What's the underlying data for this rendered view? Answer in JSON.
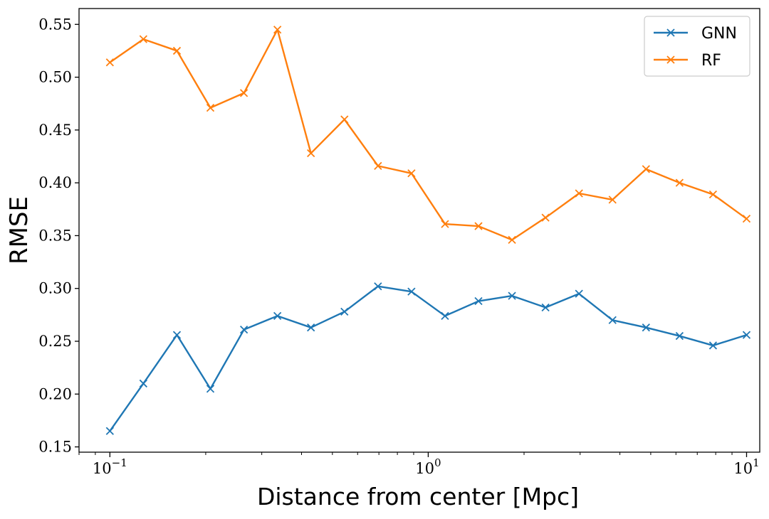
{
  "chart_data": {
    "type": "line",
    "xlabel": "Distance from center [Mpc]",
    "ylabel": "RMSE",
    "xscale": "log",
    "xlim": [
      0.08,
      11
    ],
    "ylim": [
      0.145,
      0.565
    ],
    "x_ticks": [
      {
        "value": 0.1,
        "base": "10",
        "exp": "−1"
      },
      {
        "value": 1,
        "base": "10",
        "exp": "0"
      },
      {
        "value": 10,
        "base": "10",
        "exp": "1"
      }
    ],
    "y_ticks": [
      "0.15",
      "0.20",
      "0.25",
      "0.30",
      "0.35",
      "0.40",
      "0.45",
      "0.50",
      "0.55"
    ],
    "grid": false,
    "legend_position": "top-right",
    "x": [
      0.1,
      0.1274,
      0.1624,
      0.2069,
      0.2637,
      0.336,
      0.4281,
      0.5456,
      0.6952,
      0.8859,
      1.1288,
      1.4384,
      1.833,
      2.3357,
      2.9764,
      3.7927,
      4.8329,
      6.1585,
      7.8476,
      10.0
    ],
    "series": [
      {
        "name": "GNN",
        "color": "#1f77b4",
        "marker": "x",
        "values": [
          0.165,
          0.21,
          0.256,
          0.205,
          0.261,
          0.274,
          0.263,
          0.278,
          0.302,
          0.297,
          0.274,
          0.288,
          0.293,
          0.282,
          0.295,
          0.27,
          0.263,
          0.255,
          0.246,
          0.256
        ]
      },
      {
        "name": "RF",
        "color": "#ff7f0e",
        "marker": "x",
        "values": [
          0.514,
          0.536,
          0.525,
          0.471,
          0.485,
          0.545,
          0.428,
          0.46,
          0.416,
          0.409,
          0.361,
          0.359,
          0.346,
          0.367,
          0.39,
          0.384,
          0.413,
          0.4,
          0.389,
          0.366
        ]
      }
    ]
  }
}
